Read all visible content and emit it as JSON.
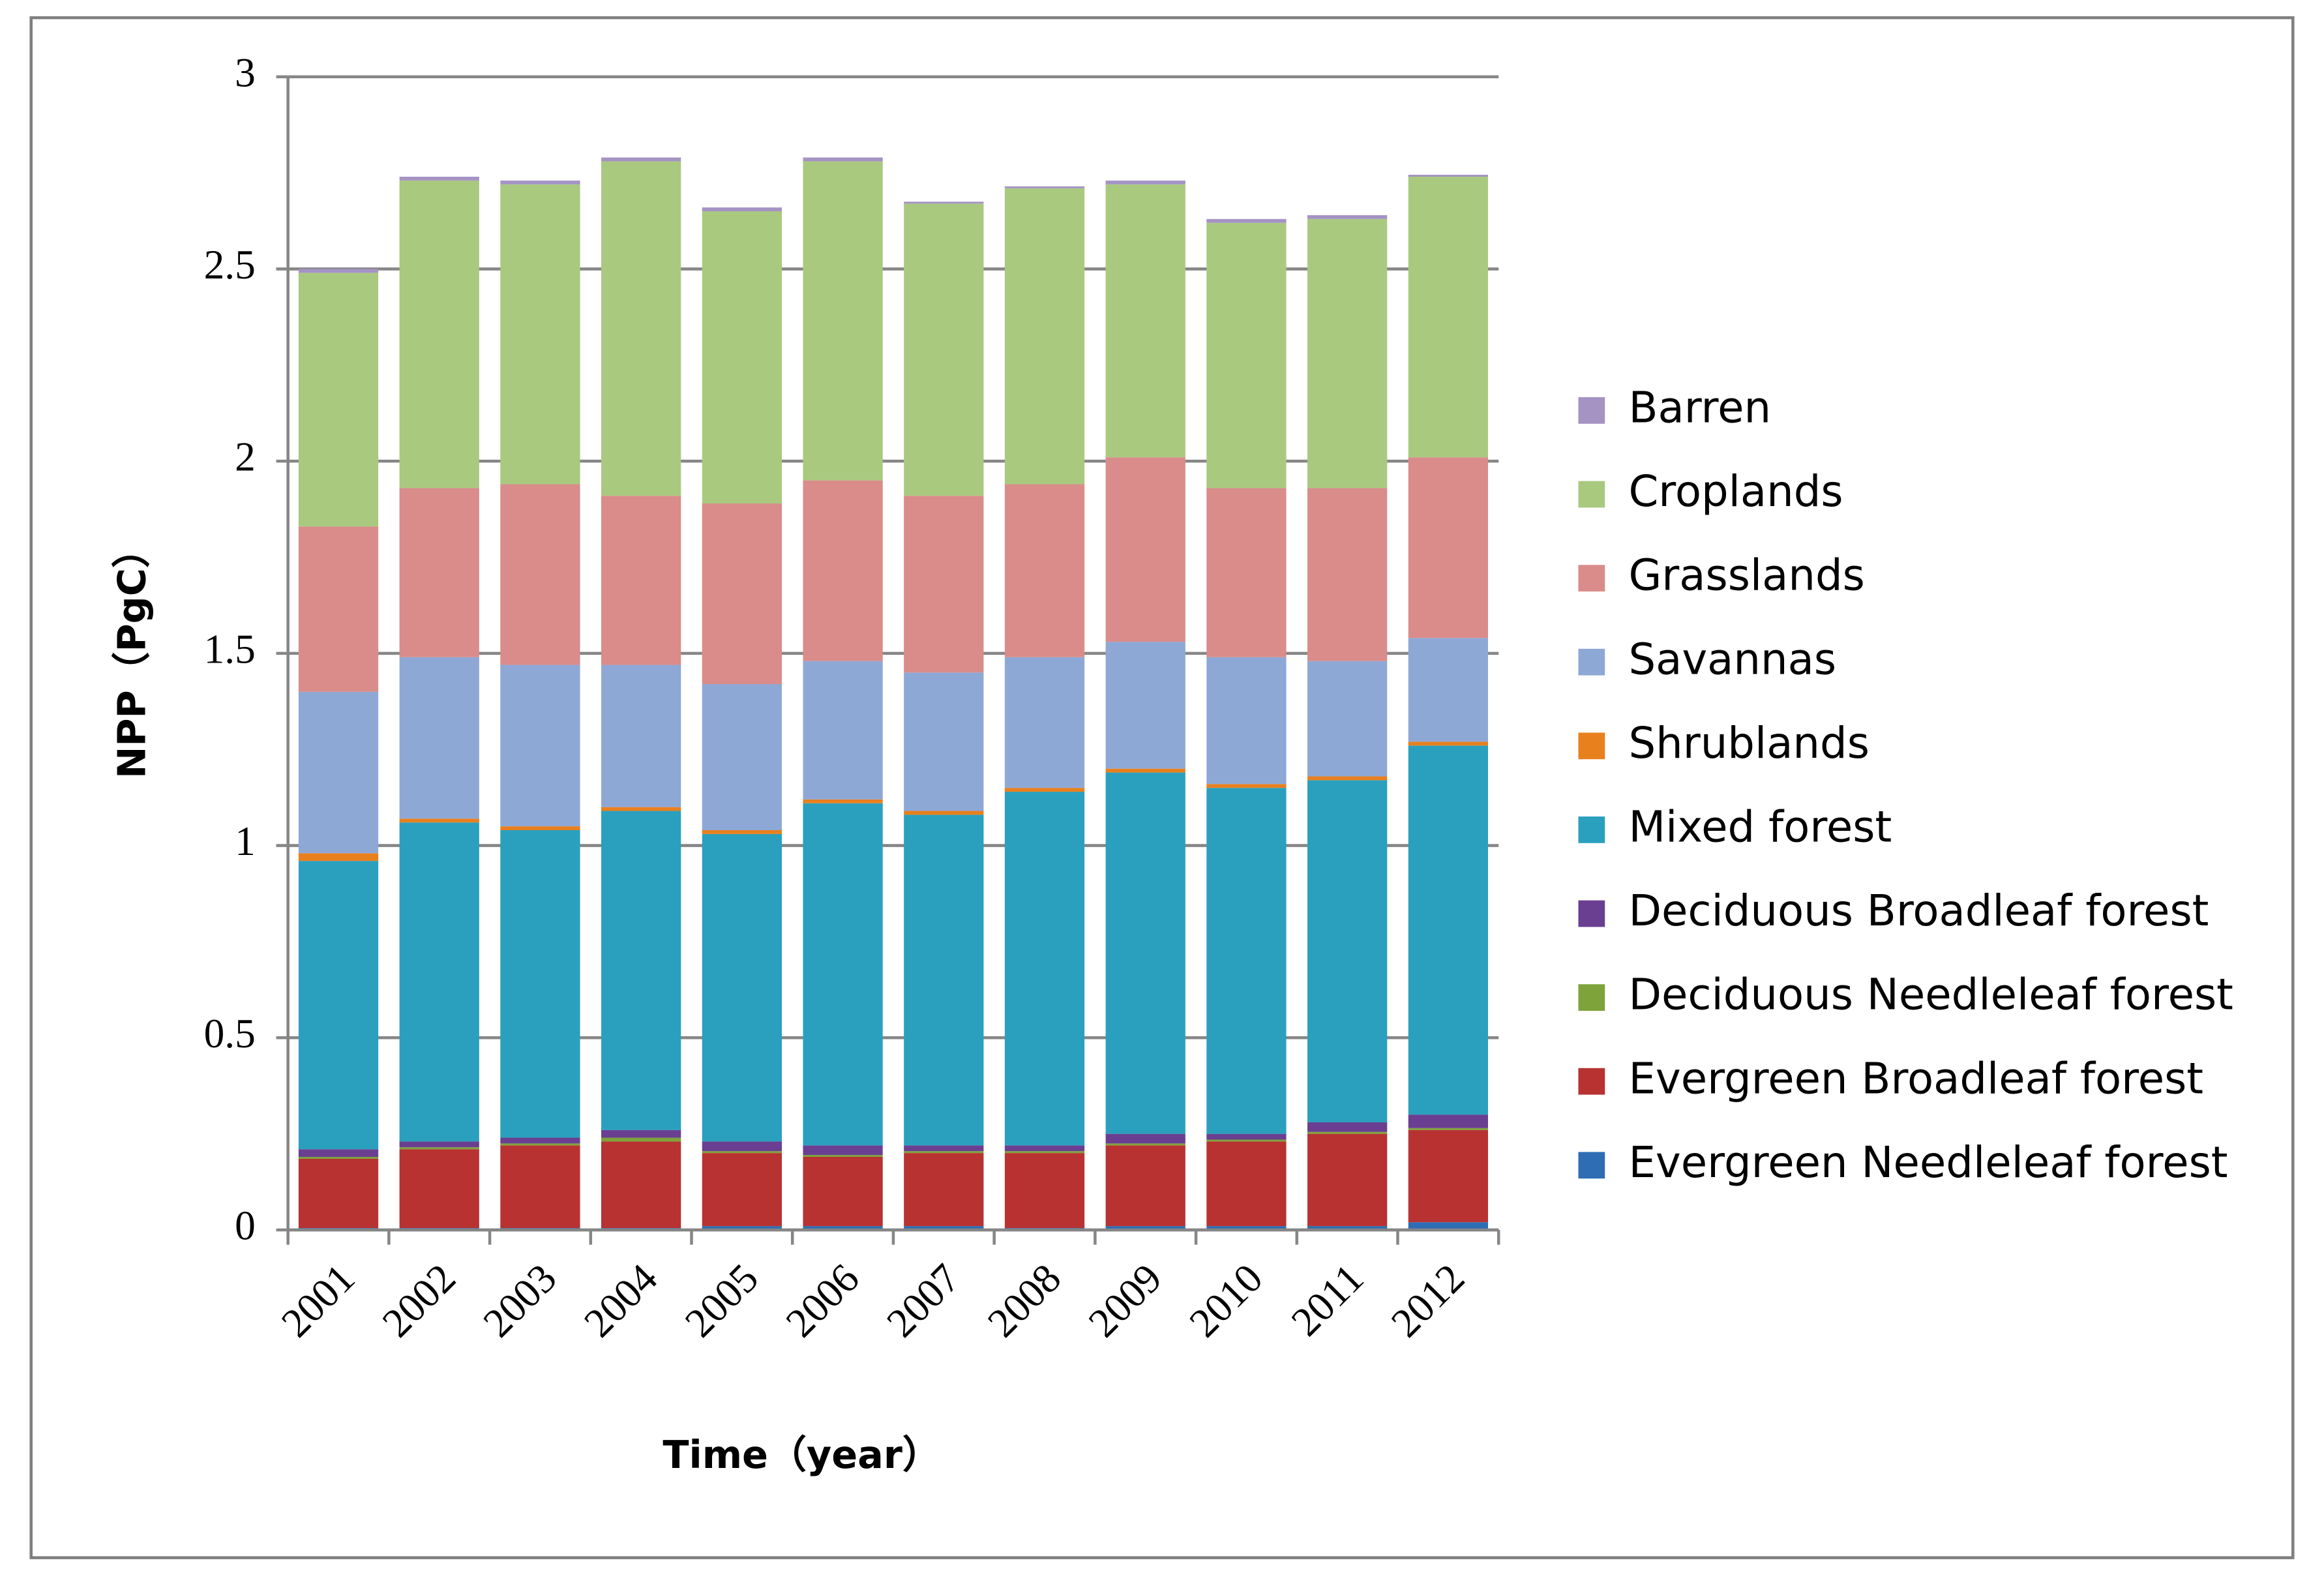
{
  "chart_data": {
    "type": "stacked_bar",
    "x_label": "Time（year）",
    "y_label": "NPP（PgC）",
    "categories": [
      "2001",
      "2002",
      "2003",
      "2004",
      "2005",
      "2006",
      "2007",
      "2008",
      "2009",
      "2010",
      "2011",
      "2012"
    ],
    "ylim": [
      0,
      3
    ],
    "yticks": [
      0,
      0.5,
      1,
      1.5,
      2,
      2.5,
      3
    ],
    "grid": true,
    "series": [
      {
        "name": "Evergreen Needleleaf forest",
        "color": "#2e6db4",
        "values": [
          0.005,
          0.005,
          0.005,
          0.005,
          0.01,
          0.01,
          0.01,
          0.005,
          0.01,
          0.01,
          0.01,
          0.02
        ]
      },
      {
        "name": "Evergreen Broadleaf forest",
        "color": "#b83232",
        "values": [
          0.18,
          0.205,
          0.215,
          0.225,
          0.19,
          0.18,
          0.19,
          0.195,
          0.21,
          0.22,
          0.24,
          0.24
        ]
      },
      {
        "name": "Deciduous Needleleaf forest",
        "color": "#7ea33a",
        "values": [
          0.005,
          0.005,
          0.005,
          0.01,
          0.005,
          0.005,
          0.005,
          0.005,
          0.005,
          0.005,
          0.005,
          0.005
        ]
      },
      {
        "name": "Deciduous Broadleaf forest",
        "color": "#6a3f91",
        "values": [
          0.02,
          0.015,
          0.015,
          0.02,
          0.025,
          0.025,
          0.015,
          0.015,
          0.025,
          0.015,
          0.025,
          0.035
        ]
      },
      {
        "name": "Mixed forest",
        "color": "#2aa0be",
        "values": [
          0.75,
          0.83,
          0.8,
          0.83,
          0.8,
          0.89,
          0.86,
          0.92,
          0.94,
          0.9,
          0.89,
          0.96
        ]
      },
      {
        "name": "Shrublands",
        "color": "#e8801e",
        "values": [
          0.02,
          0.01,
          0.01,
          0.01,
          0.01,
          0.01,
          0.01,
          0.01,
          0.01,
          0.01,
          0.01,
          0.01
        ]
      },
      {
        "name": "Savannas",
        "color": "#8ea8d6",
        "values": [
          0.42,
          0.42,
          0.42,
          0.37,
          0.38,
          0.36,
          0.36,
          0.34,
          0.33,
          0.33,
          0.3,
          0.27
        ]
      },
      {
        "name": "Grasslands",
        "color": "#d98c8a",
        "values": [
          0.43,
          0.44,
          0.47,
          0.44,
          0.47,
          0.47,
          0.46,
          0.45,
          0.48,
          0.44,
          0.45,
          0.47
        ]
      },
      {
        "name": "Croplands",
        "color": "#a9c97f",
        "values": [
          0.66,
          0.8,
          0.78,
          0.87,
          0.76,
          0.83,
          0.76,
          0.77,
          0.71,
          0.69,
          0.7,
          0.73
        ]
      },
      {
        "name": "Barren",
        "color": "#a593c4",
        "values": [
          0.01,
          0.01,
          0.01,
          0.01,
          0.01,
          0.01,
          0.005,
          0.005,
          0.01,
          0.01,
          0.01,
          0.005
        ]
      }
    ]
  }
}
